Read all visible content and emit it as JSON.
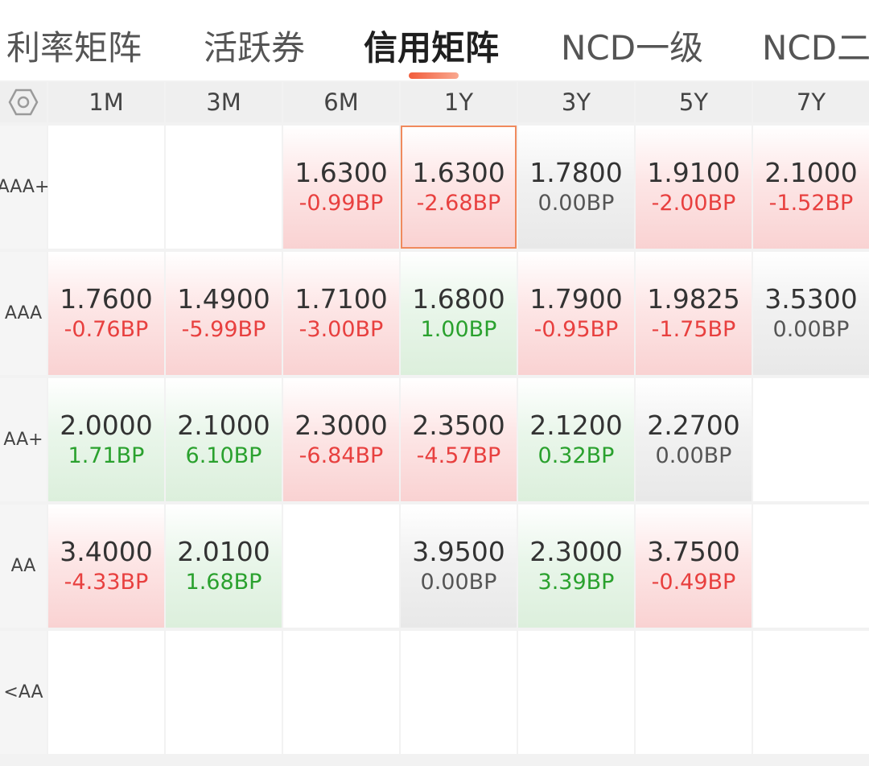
{
  "tabs": [
    {
      "label": "利率矩阵",
      "active": false
    },
    {
      "label": "活跃券",
      "active": false
    },
    {
      "label": "信用矩阵",
      "active": true
    },
    {
      "label": "NCD一级",
      "active": false
    },
    {
      "label": "NCD二",
      "active": false
    }
  ],
  "settings_icon": "hexagon-settings-icon",
  "columns": [
    "1M",
    "3M",
    "6M",
    "1Y",
    "3Y",
    "5Y",
    "7Y"
  ],
  "rows": [
    {
      "label": "AAA +",
      "cells": [
        null,
        null,
        {
          "value": "1.6300",
          "change": "-0.99BP",
          "trend": "down"
        },
        {
          "value": "1.6300",
          "change": "-2.68BP",
          "trend": "down",
          "selected": true
        },
        {
          "value": "1.7800",
          "change": "0.00BP",
          "trend": "flat"
        },
        {
          "value": "1.9100",
          "change": "-2.00BP",
          "trend": "down"
        },
        {
          "value": "2.1000",
          "change": "-1.52BP",
          "trend": "down"
        }
      ]
    },
    {
      "label": "AAA",
      "cells": [
        {
          "value": "1.7600",
          "change": "-0.76BP",
          "trend": "down"
        },
        {
          "value": "1.4900",
          "change": "-5.99BP",
          "trend": "down"
        },
        {
          "value": "1.7100",
          "change": "-3.00BP",
          "trend": "down"
        },
        {
          "value": "1.6800",
          "change": "1.00BP",
          "trend": "up"
        },
        {
          "value": "1.7900",
          "change": "-0.95BP",
          "trend": "down"
        },
        {
          "value": "1.9825",
          "change": "-1.75BP",
          "trend": "down"
        },
        {
          "value": "3.5300",
          "change": "0.00BP",
          "trend": "flat"
        }
      ]
    },
    {
      "label": "AA+",
      "cells": [
        {
          "value": "2.0000",
          "change": "1.71BP",
          "trend": "up"
        },
        {
          "value": "2.1000",
          "change": "6.10BP",
          "trend": "up"
        },
        {
          "value": "2.3000",
          "change": "-6.84BP",
          "trend": "down"
        },
        {
          "value": "2.3500",
          "change": "-4.57BP",
          "trend": "down"
        },
        {
          "value": "2.1200",
          "change": "0.32BP",
          "trend": "up"
        },
        {
          "value": "2.2700",
          "change": "0.00BP",
          "trend": "flat"
        },
        null
      ]
    },
    {
      "label": "AA",
      "cells": [
        {
          "value": "3.4000",
          "change": "-4.33BP",
          "trend": "down"
        },
        {
          "value": "2.0100",
          "change": "1.68BP",
          "trend": "up"
        },
        null,
        {
          "value": "3.9500",
          "change": "0.00BP",
          "trend": "flat"
        },
        {
          "value": "2.3000",
          "change": "3.39BP",
          "trend": "up"
        },
        {
          "value": "3.7500",
          "change": "-0.49BP",
          "trend": "down"
        },
        null
      ]
    },
    {
      "label": "<AA",
      "cells": [
        null,
        null,
        null,
        null,
        null,
        null,
        null
      ]
    }
  ],
  "colors": {
    "down": "#e8403f",
    "up": "#2aa12e",
    "flat": "#555555",
    "accent": "#f25c3b",
    "selected_border": "#f08a5d"
  }
}
